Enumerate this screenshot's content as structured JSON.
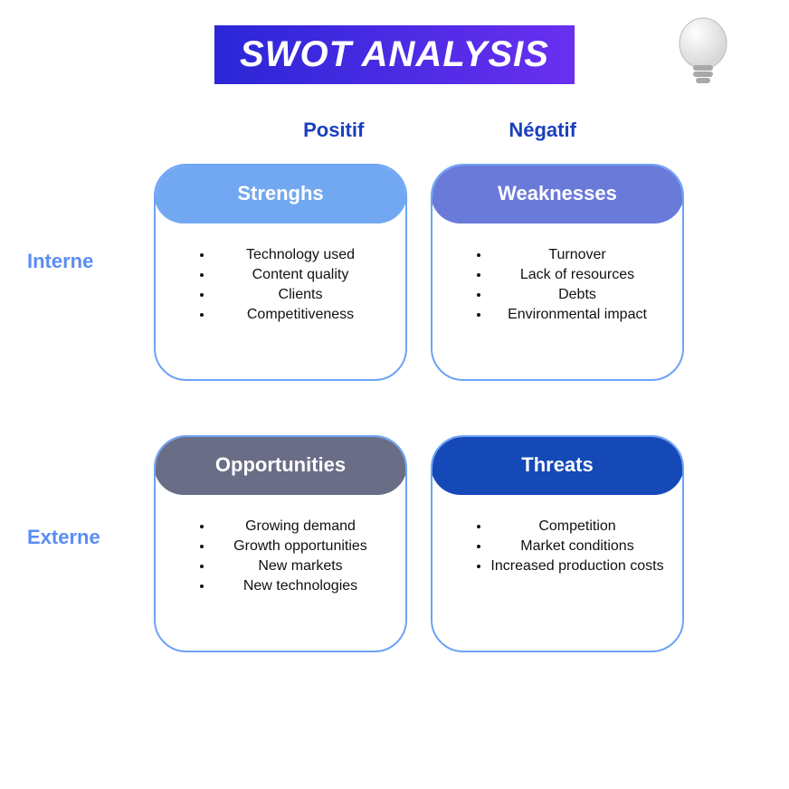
{
  "title": {
    "text": "SWOT ANALYSIS",
    "bg_gradient_from": "#2a27d6",
    "bg_gradient_to": "#6a2ff0",
    "color": "#ffffff",
    "fontsize": 40
  },
  "column_headers": {
    "positive": "Positif",
    "negative": "Négatif",
    "color": "#1a3fc0",
    "fontsize": 22
  },
  "row_headers": {
    "internal": "Interne",
    "external": "Externe",
    "color": "#5a8df5",
    "fontsize": 22
  },
  "card_border_color": "#6da3f5",
  "item_fontsize": 16,
  "item_color": "#111111",
  "quadrants": {
    "strengths": {
      "label": "Strenghs",
      "header_bg": "#72a8f2",
      "header_color": "#ffffff",
      "header_fontsize": 22,
      "items": [
        "Technology used",
        "Content quality",
        "Clients",
        "Competitiveness"
      ]
    },
    "weaknesses": {
      "label": "Weaknesses",
      "header_bg": "#6a7ad9",
      "header_color": "#ffffff",
      "header_fontsize": 22,
      "items": [
        "Turnover",
        "Lack of resources",
        "Debts",
        "Environmental impact"
      ]
    },
    "opportunities": {
      "label": "Opportunities",
      "header_bg": "#6a6d86",
      "header_color": "#ffffff",
      "header_fontsize": 22,
      "items": [
        "Growing demand",
        "Growth opportunities",
        "New markets",
        "New technologies"
      ]
    },
    "threats": {
      "label": "Threats",
      "header_bg": "#1549b8",
      "header_color": "#ffffff",
      "header_fontsize": 22,
      "items": [
        "Competition",
        "Market conditions",
        "Increased production costs"
      ]
    }
  },
  "bulb": {
    "glass_color": "#d8d8d8",
    "highlight_color": "#ffffff",
    "base_color": "#a8a8a8"
  }
}
